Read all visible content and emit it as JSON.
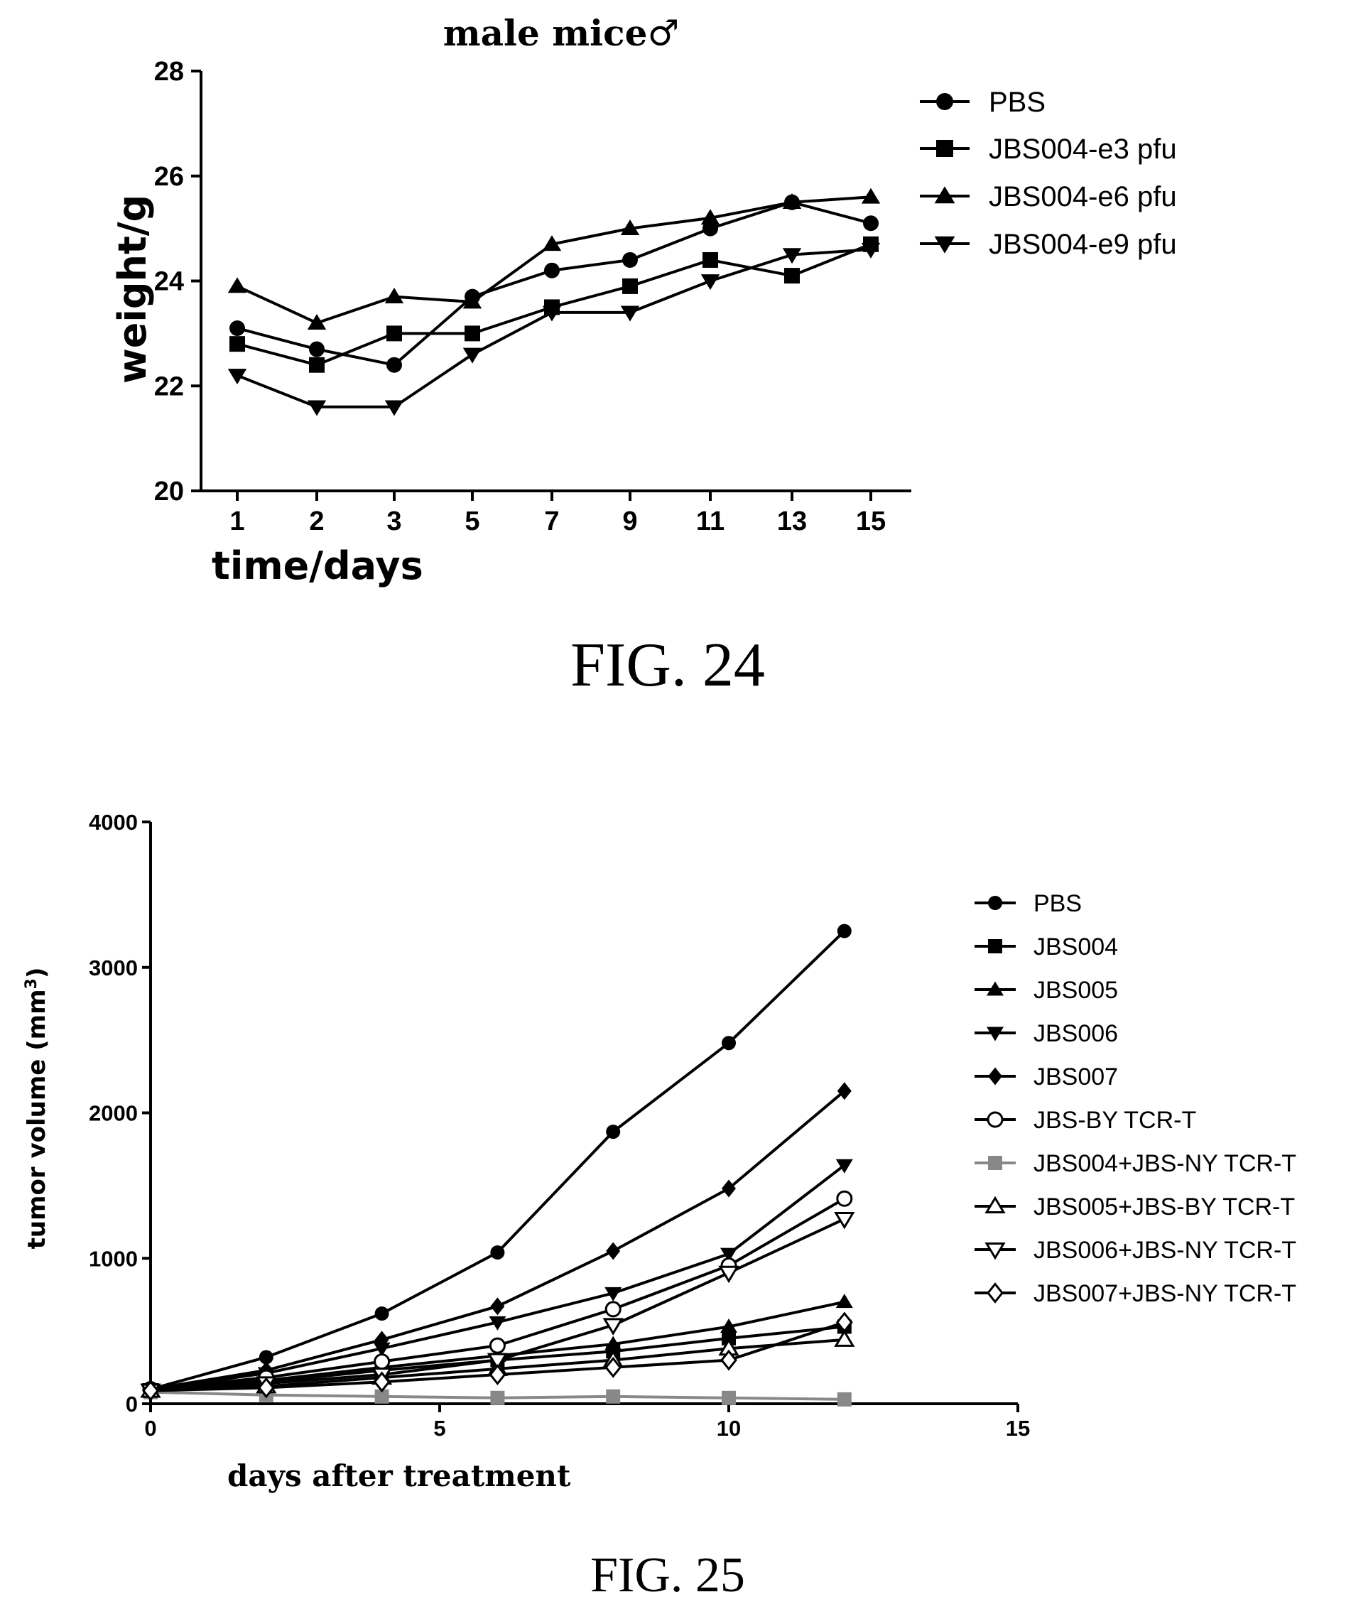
{
  "chart_data": [
    {
      "type": "line",
      "title": "male mice♂",
      "xlabel": "time/days",
      "ylabel": "weight/g",
      "categories": [
        "1",
        "2",
        "3",
        "5",
        "7",
        "9",
        "11",
        "13",
        "15"
      ],
      "ylim": [
        20,
        28
      ],
      "yticks": [
        20,
        22,
        24,
        26,
        28
      ],
      "legend_position": "top-right",
      "series": [
        {
          "name": "PBS",
          "marker": "circle",
          "values": [
            23.1,
            22.7,
            22.4,
            23.7,
            24.2,
            24.4,
            25.0,
            25.5,
            25.1
          ]
        },
        {
          "name": "JBS004-e3 pfu",
          "marker": "square",
          "values": [
            22.8,
            22.4,
            23.0,
            23.0,
            23.5,
            23.9,
            24.4,
            24.1,
            24.7
          ]
        },
        {
          "name": "JBS004-e6 pfu",
          "marker": "triangle-up",
          "values": [
            23.9,
            23.2,
            23.7,
            23.6,
            24.7,
            25.0,
            25.2,
            25.5,
            25.6
          ]
        },
        {
          "name": "JBS004-e9 pfu",
          "marker": "triangle-down",
          "values": [
            22.2,
            21.6,
            21.6,
            22.6,
            23.4,
            23.4,
            24.0,
            24.5,
            24.6
          ]
        }
      ]
    },
    {
      "type": "line",
      "xlabel": "days after treatment",
      "ylabel": "tumor volume (mm",
      "ylabel_sup": "3",
      "ylabel_end": ")",
      "x": [
        0,
        2,
        4,
        6,
        8,
        10,
        12
      ],
      "xlim": [
        0,
        15
      ],
      "xticks": [
        0,
        5,
        10,
        15
      ],
      "ylim": [
        0,
        4000
      ],
      "yticks": [
        0,
        1000,
        2000,
        3000,
        4000
      ],
      "legend_position": "right",
      "series": [
        {
          "name": "PBS",
          "marker": "circle",
          "color": "#000000",
          "values": [
            100,
            320,
            620,
            1040,
            1870,
            2480,
            3250
          ]
        },
        {
          "name": "JBS004",
          "marker": "square",
          "color": "#000000",
          "values": [
            90,
            150,
            230,
            300,
            360,
            450,
            530
          ]
        },
        {
          "name": "JBS005",
          "marker": "triangle-up",
          "color": "#000000",
          "values": [
            95,
            160,
            250,
            330,
            410,
            530,
            700
          ]
        },
        {
          "name": "JBS006",
          "marker": "triangle-down",
          "color": "#000000",
          "values": [
            100,
            210,
            380,
            560,
            760,
            1030,
            1640
          ]
        },
        {
          "name": "JBS007",
          "marker": "diamond",
          "color": "#000000",
          "values": [
            100,
            230,
            440,
            670,
            1050,
            1480,
            2150
          ]
        },
        {
          "name": "JBS-BY TCR-T",
          "marker": "circle-open",
          "color": "#000000",
          "values": [
            100,
            180,
            290,
            400,
            650,
            950,
            1410
          ]
        },
        {
          "name": "JBS004+JBS-NY TCR-T",
          "marker": "square",
          "color": "#888888",
          "values": [
            80,
            60,
            50,
            40,
            50,
            40,
            30
          ]
        },
        {
          "name": "JBS005+JBS-BY TCR-T",
          "marker": "triangle-up-open",
          "color": "#000000",
          "values": [
            90,
            120,
            180,
            240,
            300,
            380,
            440
          ]
        },
        {
          "name": "JBS006+JBS-NY TCR-T",
          "marker": "triangle-down-open",
          "color": "#000000",
          "values": [
            90,
            140,
            200,
            300,
            540,
            900,
            1270
          ]
        },
        {
          "name": "JBS007+JBS-NY TCR-T",
          "marker": "diamond-open",
          "color": "#000000",
          "values": [
            90,
            110,
            150,
            200,
            250,
            300,
            560
          ]
        }
      ]
    }
  ],
  "captions": {
    "fig24": "FIG. 24",
    "fig25": "FIG. 25"
  }
}
